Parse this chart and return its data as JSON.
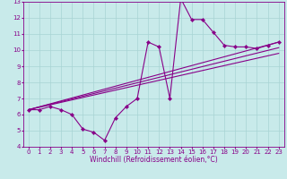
{
  "title": "",
  "xlabel": "Windchill (Refroidissement éolien,°C)",
  "xlim": [
    -0.5,
    23.5
  ],
  "ylim": [
    4,
    13
  ],
  "xticks": [
    0,
    1,
    2,
    3,
    4,
    5,
    6,
    7,
    8,
    9,
    10,
    11,
    12,
    13,
    14,
    15,
    16,
    17,
    18,
    19,
    20,
    21,
    22,
    23
  ],
  "yticks": [
    4,
    5,
    6,
    7,
    8,
    9,
    10,
    11,
    12,
    13
  ],
  "background_color": "#c8eaea",
  "grid_color": "#a8d4d4",
  "line_color": "#880088",
  "series1_x": [
    0,
    1,
    2,
    3,
    4,
    5,
    6,
    7,
    8,
    9,
    10,
    11,
    12,
    13,
    14,
    15,
    16,
    17,
    18,
    19,
    20,
    21,
    22,
    23
  ],
  "series1_y": [
    6.3,
    6.3,
    6.5,
    6.3,
    6.0,
    5.1,
    4.9,
    4.4,
    5.8,
    6.5,
    7.0,
    10.5,
    10.2,
    7.0,
    13.2,
    11.9,
    11.9,
    11.1,
    10.3,
    10.2,
    10.2,
    10.1,
    10.3,
    10.5
  ],
  "trend1_x": [
    0,
    23
  ],
  "trend1_y": [
    6.3,
    10.5
  ],
  "trend2_x": [
    0,
    23
  ],
  "trend2_y": [
    6.3,
    10.15
  ],
  "trend3_x": [
    0,
    23
  ],
  "trend3_y": [
    6.3,
    9.8
  ],
  "marker": "D",
  "marker_size": 2.2,
  "linewidth": 0.8,
  "tick_fontsize": 5.0,
  "label_fontsize": 5.5
}
